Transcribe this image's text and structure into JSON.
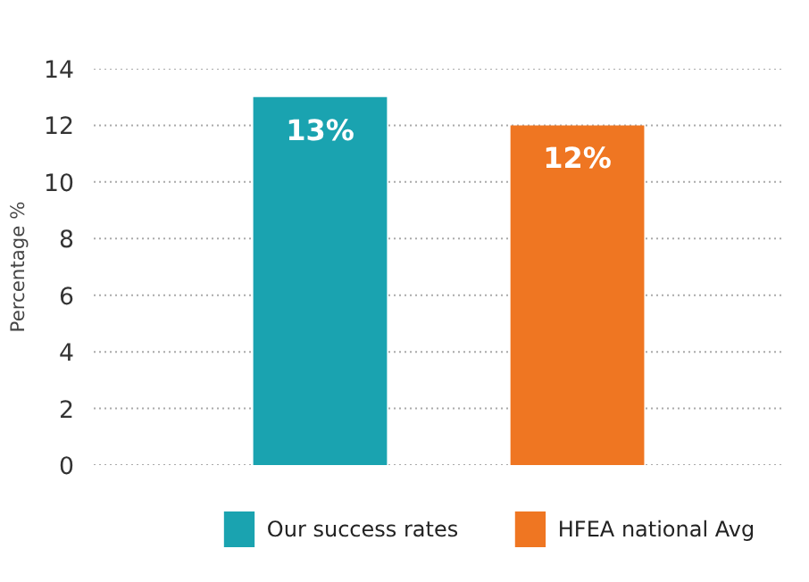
{
  "chart_data": {
    "type": "bar",
    "ylabel": "Percentage %",
    "categories": [
      null,
      null
    ],
    "series": [
      {
        "name": "Our success rates",
        "color": "#1aa3b0",
        "values": [
          13,
          null
        ],
        "value_labels": [
          "13%",
          null
        ]
      },
      {
        "name": "HFEA national Avg",
        "color": "#ef7622",
        "values": [
          null,
          12
        ],
        "value_labels": [
          null,
          "12%"
        ]
      }
    ],
    "ylim": [
      0,
      14
    ],
    "yticks": [
      0,
      2,
      4,
      6,
      8,
      10,
      12,
      14
    ],
    "grid": "y",
    "legend": "bottom"
  }
}
